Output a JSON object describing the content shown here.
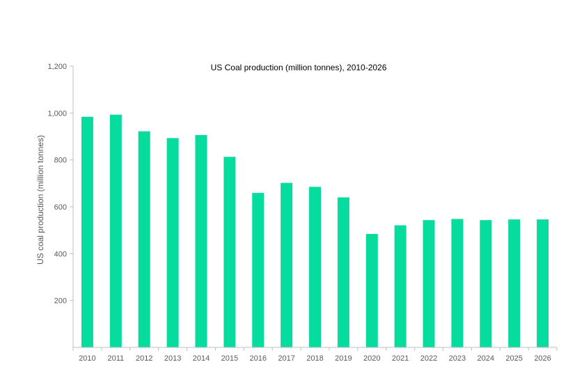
{
  "chart_data": {
    "type": "bar",
    "title": "US Coal production (million tonnes), 2010-2026",
    "xlabel": "",
    "ylabel": "US coal production  (million tonnes)",
    "categories": [
      "2010",
      "2011",
      "2012",
      "2013",
      "2014",
      "2015",
      "2016",
      "2017",
      "2018",
      "2019",
      "2020",
      "2021",
      "2022",
      "2023",
      "2024",
      "2025",
      "2026"
    ],
    "values": [
      984,
      993,
      922,
      893,
      906,
      813,
      659,
      702,
      685,
      640,
      484,
      521,
      543,
      548,
      543,
      546,
      546
    ],
    "ylim": [
      0,
      1200
    ],
    "yticks": [
      200,
      400,
      600,
      800,
      1000,
      1200
    ],
    "ytick_labels": [
      "200",
      "400",
      "600",
      "800",
      "1,000",
      "1,200"
    ],
    "grid": false,
    "legend": "none",
    "bar_color": "#05dc9e",
    "axis_color": "#bfbfbf"
  }
}
